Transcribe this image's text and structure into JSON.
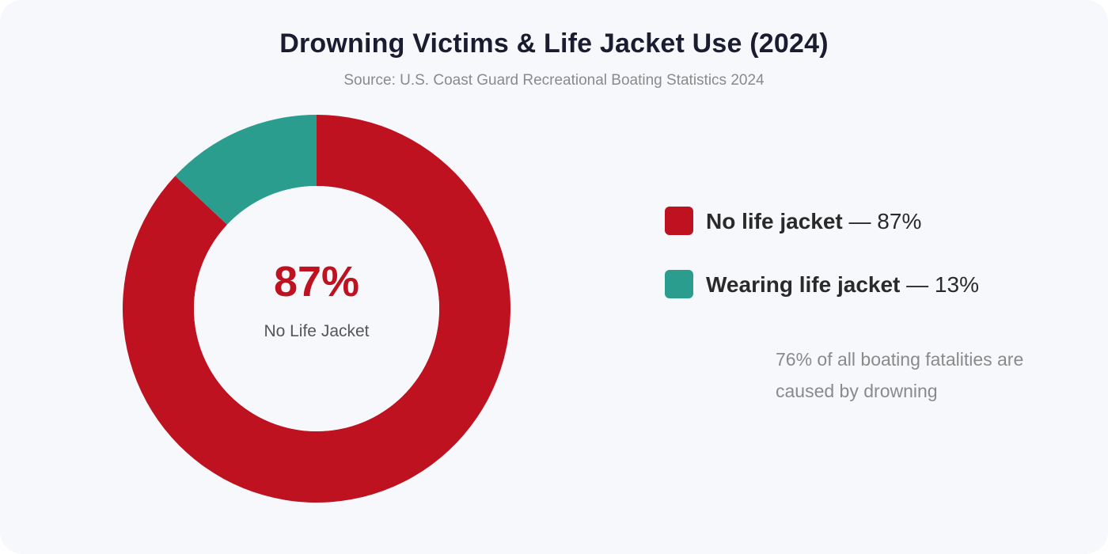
{
  "chart_data": {
    "type": "pie",
    "title": "Drowning Victims & Life Jacket Use (2024)",
    "subtitle": "Source: U.S. Coast Guard Recreational Boating Statistics 2024",
    "donut": true,
    "slices": [
      {
        "label": "No life jacket",
        "value": 87,
        "value_label": "87%",
        "color": "#be1220"
      },
      {
        "label": "Wearing life jacket",
        "value": 13,
        "value_label": "13%",
        "color": "#2a9d8f"
      }
    ],
    "center_value": "87%",
    "center_label": "No Life Jacket",
    "legend_position": "right",
    "separator": "—",
    "annotation": "76% of all boating fatalities are caused by drowning"
  }
}
